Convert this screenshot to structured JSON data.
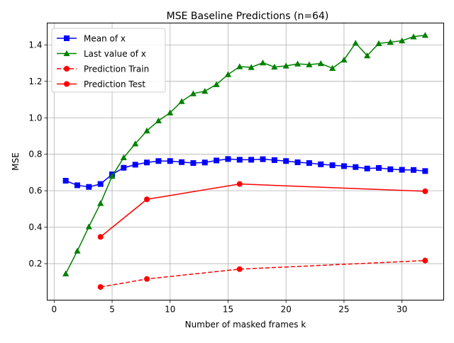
{
  "chart_data": {
    "type": "line",
    "title": "MSE Baseline Predictions (n=64)",
    "xlabel": "Number of masked frames k",
    "ylabel": "MSE",
    "xlim": [
      -0.6,
      33.6
    ],
    "ylim": [
      0.0,
      1.52
    ],
    "xticks": [
      0,
      5,
      10,
      15,
      20,
      25,
      30
    ],
    "yticks": [
      0.2,
      0.4,
      0.6,
      0.8,
      1.0,
      1.2,
      1.4
    ],
    "grid": true,
    "legend_position": "top-left",
    "series": [
      {
        "name": "Mean of x",
        "color": "#0000ff",
        "marker": "square",
        "linestyle": "solid",
        "x": [
          1,
          2,
          3,
          4,
          5,
          6,
          7,
          8,
          9,
          10,
          11,
          12,
          13,
          14,
          15,
          16,
          17,
          18,
          19,
          20,
          21,
          22,
          23,
          24,
          25,
          26,
          27,
          28,
          29,
          30,
          31,
          32
        ],
        "y": [
          0.655,
          0.63,
          0.621,
          0.637,
          0.69,
          0.726,
          0.743,
          0.755,
          0.763,
          0.763,
          0.757,
          0.752,
          0.755,
          0.766,
          0.774,
          0.77,
          0.77,
          0.773,
          0.768,
          0.763,
          0.756,
          0.752,
          0.745,
          0.74,
          0.735,
          0.73,
          0.722,
          0.725,
          0.718,
          0.715,
          0.714,
          0.708
        ]
      },
      {
        "name": "Last value of x",
        "color": "#008000",
        "marker": "triangle",
        "linestyle": "solid",
        "x": [
          1,
          2,
          3,
          4,
          5,
          6,
          7,
          8,
          9,
          10,
          11,
          12,
          13,
          14,
          15,
          16,
          17,
          18,
          19,
          20,
          21,
          22,
          23,
          24,
          25,
          26,
          27,
          28,
          29,
          30,
          31,
          32
        ],
        "y": [
          0.145,
          0.27,
          0.403,
          0.531,
          0.68,
          0.782,
          0.858,
          0.929,
          0.984,
          1.028,
          1.09,
          1.133,
          1.146,
          1.183,
          1.238,
          1.281,
          1.277,
          1.302,
          1.279,
          1.285,
          1.296,
          1.292,
          1.298,
          1.272,
          1.318,
          1.41,
          1.341,
          1.408,
          1.415,
          1.423,
          1.445,
          1.453
        ]
      },
      {
        "name": "Prediction Train",
        "color": "#ff0000",
        "marker": "circle",
        "linestyle": "dashed",
        "x": [
          4,
          8,
          16,
          32
        ],
        "y": [
          0.072,
          0.116,
          0.17,
          0.217
        ]
      },
      {
        "name": "Prediction Test",
        "color": "#ff0000",
        "marker": "circle",
        "linestyle": "solid",
        "x": [
          4,
          8,
          16,
          32
        ],
        "y": [
          0.347,
          0.553,
          0.637,
          0.597
        ]
      }
    ]
  }
}
